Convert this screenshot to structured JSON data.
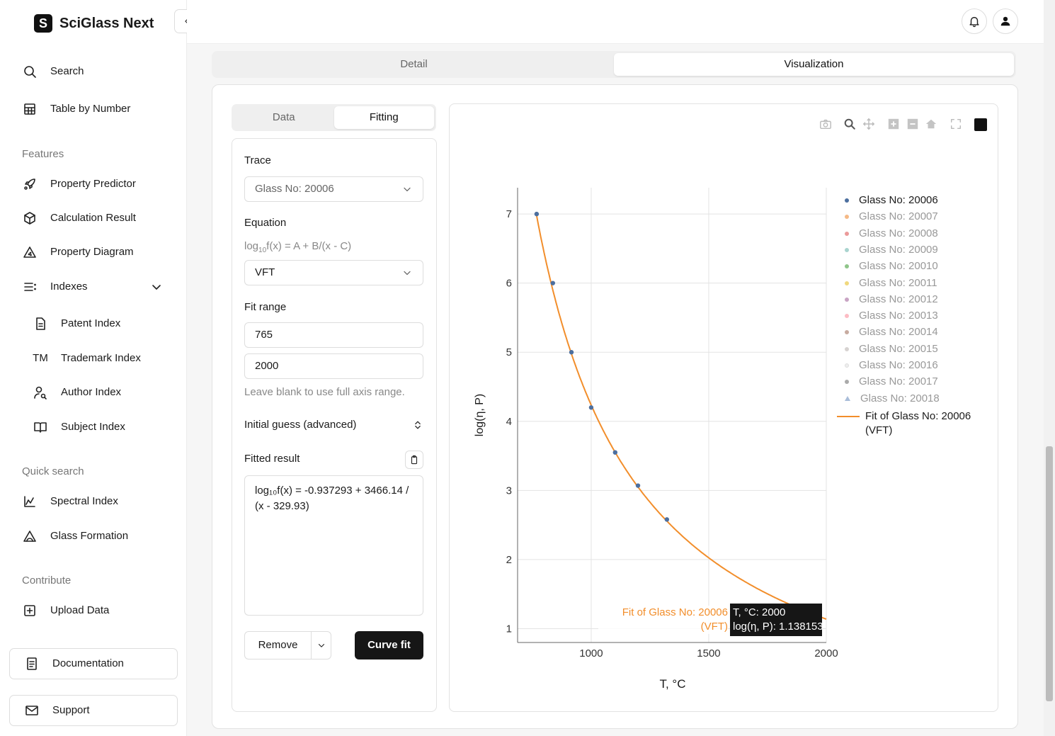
{
  "app": {
    "title": "SciGlass Next",
    "logo_letter": "S"
  },
  "sidebar": {
    "top": [
      {
        "label": "Search",
        "icon": "search-icon"
      },
      {
        "label": "Table by Number",
        "icon": "table-icon"
      }
    ],
    "features_label": "Features",
    "features": [
      {
        "label": "Property Predictor",
        "icon": "rocket-icon"
      },
      {
        "label": "Calculation Result",
        "icon": "cube-icon"
      },
      {
        "label": "Property Diagram",
        "icon": "triangle-icon"
      },
      {
        "label": "Indexes",
        "icon": "list-icon"
      }
    ],
    "indexes": [
      {
        "label": "Patent Index"
      },
      {
        "label": "Trademark Index",
        "icon_text": "TM"
      },
      {
        "label": "Author Index"
      },
      {
        "label": "Subject Index"
      }
    ],
    "quick_label": "Quick search",
    "quick": [
      {
        "label": "Spectral Index"
      },
      {
        "label": "Glass Formation"
      }
    ],
    "contribute_label": "Contribute",
    "contribute": [
      {
        "label": "Upload Data"
      }
    ],
    "documentation": "Documentation",
    "support": "Support"
  },
  "main": {
    "tabs": [
      "Detail",
      "Visualization"
    ],
    "subtabs": [
      "Data",
      "Fitting"
    ],
    "form": {
      "trace_label": "Trace",
      "trace_value": "Glass No: 20006",
      "equation_label": "Equation",
      "equation_formula_a": "log",
      "equation_formula_sub": "10",
      "equation_formula_b": "f(x) = A + B/(x - C)",
      "equation_value": "VFT",
      "fit_range_label": "Fit range",
      "fit_min": "765",
      "fit_max": "2000",
      "fit_hint": "Leave blank to use full axis range.",
      "initial_guess": "Initial guess (advanced)",
      "fitted_label": "Fitted result",
      "fitted_value": "log₁₀f(x) = -0.937293 + 3466.14 / (x - 329.93)",
      "remove": "Remove",
      "curve_fit": "Curve fit"
    }
  },
  "chart_data": {
    "type": "scatter",
    "xlabel": "T, °C",
    "ylabel": "log(η, P)",
    "xlim": [
      687,
      2000
    ],
    "ylim": [
      0.8,
      7.38
    ],
    "xticks": [
      1000,
      1500,
      2000
    ],
    "yticks": [
      1,
      2,
      3,
      4,
      5,
      6,
      7
    ],
    "grid": true,
    "legend": "right",
    "series": [
      {
        "name": "Glass No: 20006",
        "color": "#4c6f9f",
        "marker": "circle",
        "x": [
          768,
          837,
          916,
          1000,
          1102,
          1199,
          1322
        ],
        "y": [
          7,
          6,
          5,
          4.2,
          3.55,
          3.07,
          2.58
        ],
        "visible": true
      },
      {
        "name": "Glass No: 20007",
        "color": "#f5b986",
        "marker": "circle",
        "visible": false
      },
      {
        "name": "Glass No: 20008",
        "color": "#eb9a9a",
        "marker": "circle",
        "visible": false
      },
      {
        "name": "Glass No: 20009",
        "color": "#a9d4cf",
        "marker": "circle",
        "visible": false
      },
      {
        "name": "Glass No: 20010",
        "color": "#8fc58a",
        "marker": "circle",
        "visible": false
      },
      {
        "name": "Glass No: 20011",
        "color": "#f0d97e",
        "marker": "circle",
        "visible": false
      },
      {
        "name": "Glass No: 20012",
        "color": "#c9a4c4",
        "marker": "circle",
        "visible": false
      },
      {
        "name": "Glass No: 20013",
        "color": "#fdbcc4",
        "marker": "circle",
        "visible": false
      },
      {
        "name": "Glass No: 20014",
        "color": "#c7aba0",
        "marker": "circle",
        "visible": false
      },
      {
        "name": "Glass No: 20015",
        "color": "#d7d3d1",
        "marker": "circle",
        "visible": false
      },
      {
        "name": "Glass No: 20016",
        "color": "#eeeeee",
        "marker": "circle",
        "visible": false
      },
      {
        "name": "Glass No: 20017",
        "color": "#aaaaaa",
        "marker": "circle",
        "visible": false
      },
      {
        "name": "Glass No: 20018",
        "color": "#a9bdd9",
        "marker": "triangle",
        "visible": false
      }
    ],
    "fit": {
      "name_line1": "Fit of Glass No: 20006",
      "name_line2": "(VFT)",
      "color": "#f28e2b",
      "A": -0.937293,
      "B": 3466.14,
      "C": 329.93,
      "range": [
        765,
        2000
      ]
    },
    "tooltip": {
      "label_line1": "Fit of Glass No: 20006",
      "label_line2": "(VFT)",
      "line1": "T, °C: 2000",
      "line2": "log(η, P): 1.138153"
    }
  }
}
